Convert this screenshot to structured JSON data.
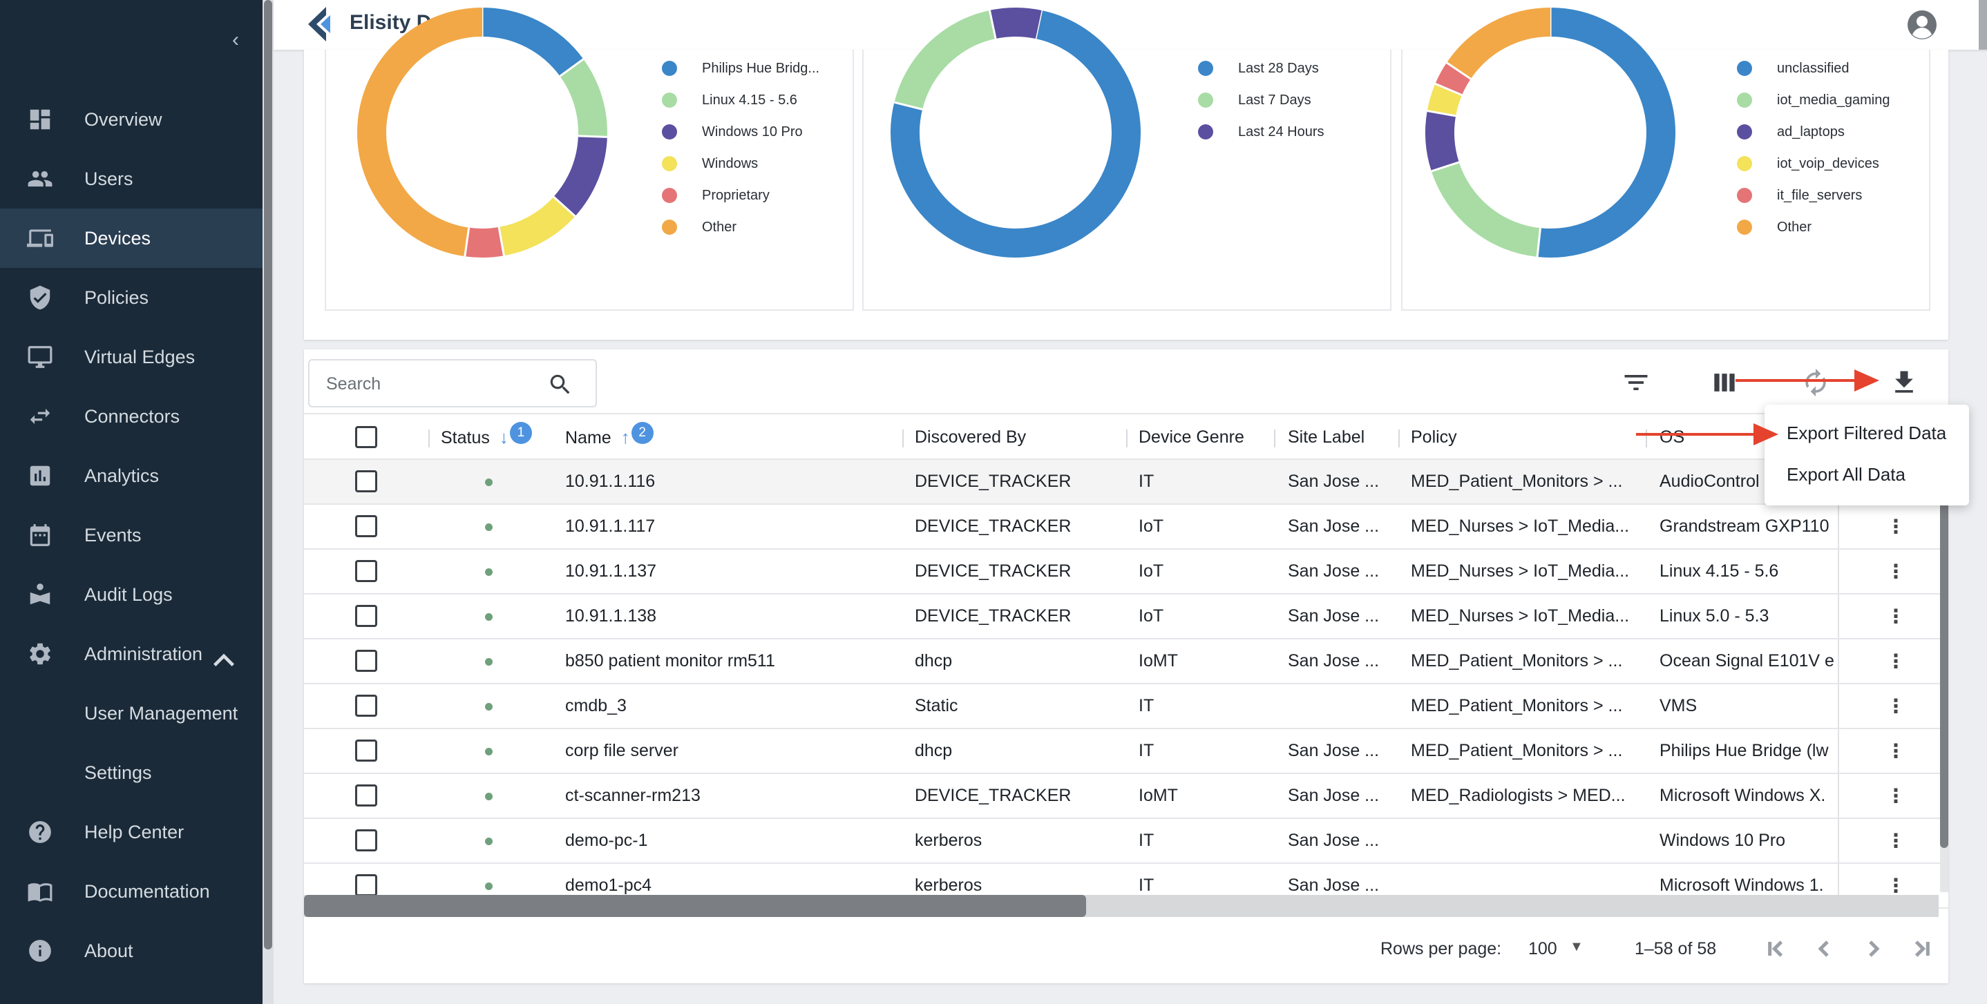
{
  "app": {
    "brand": "Elisity Demo"
  },
  "sidebar": {
    "collapse_icon": "‹",
    "items": [
      {
        "label": "Overview",
        "icon": "dashboard-icon"
      },
      {
        "label": "Users",
        "icon": "users-icon"
      },
      {
        "label": "Devices",
        "icon": "devices-icon"
      },
      {
        "label": "Policies",
        "icon": "shield-icon"
      },
      {
        "label": "Virtual Edges",
        "icon": "monitor-icon"
      },
      {
        "label": "Connectors",
        "icon": "swap-arrows-icon"
      },
      {
        "label": "Analytics",
        "icon": "analytics-icon"
      },
      {
        "label": "Events",
        "icon": "calendar-icon"
      },
      {
        "label": "Audit Logs",
        "icon": "audit-icon"
      },
      {
        "label": "Administration",
        "icon": "gear-icon"
      },
      {
        "label": "User Management"
      },
      {
        "label": "Settings"
      },
      {
        "label": "Help Center",
        "icon": "help-icon"
      },
      {
        "label": "Documentation",
        "icon": "book-icon"
      },
      {
        "label": "About",
        "icon": "info-icon"
      }
    ],
    "active": "Devices"
  },
  "charts": [
    {
      "legend": [
        "Philips Hue Bridg...",
        "Linux 4.15 - 5.6",
        "Windows 10 Pro",
        "Windows",
        "Proprietary",
        "Other"
      ],
      "colors": [
        "#3a86c8",
        "#a8dca4",
        "#5b4fa0",
        "#f3e25a",
        "#e57476",
        "#f2a846"
      ]
    },
    {
      "legend": [
        "Last 28 Days",
        "Last 7 Days",
        "Last 24 Hours"
      ],
      "colors": [
        "#3a86c8",
        "#a8dca4",
        "#5b4fa0"
      ]
    },
    {
      "legend": [
        "unclassified",
        "iot_media_gaming",
        "ad_laptops",
        "iot_voip_devices",
        "it_file_servers",
        "Other"
      ],
      "colors": [
        "#3a86c8",
        "#a8dca4",
        "#5b4fa0",
        "#f3e25a",
        "#e57476",
        "#f2a846"
      ]
    }
  ],
  "table": {
    "search_placeholder": "Search",
    "columns": {
      "status": "Status",
      "status_sort": "1",
      "name": "Name",
      "name_sort": "2",
      "discovered_by": "Discovered By",
      "device_genre": "Device Genre",
      "site_label": "Site Label",
      "policy": "Policy",
      "os": "OS"
    },
    "rows": [
      {
        "name": "10.91.1.116",
        "discovered_by": "DEVICE_TRACKER",
        "genre": "IT",
        "site": "San Jose ...",
        "policy": "MED_Patient_Monitors > ...",
        "os": "AudioControl"
      },
      {
        "name": "10.91.1.117",
        "discovered_by": "DEVICE_TRACKER",
        "genre": "IoT",
        "site": "San Jose ...",
        "policy": "MED_Nurses > IoT_Media...",
        "os": "Grandstream GXP110"
      },
      {
        "name": "10.91.1.137",
        "discovered_by": "DEVICE_TRACKER",
        "genre": "IoT",
        "site": "San Jose ...",
        "policy": "MED_Nurses > IoT_Media...",
        "os": "Linux 4.15 - 5.6"
      },
      {
        "name": "10.91.1.138",
        "discovered_by": "DEVICE_TRACKER",
        "genre": "IoT",
        "site": "San Jose ...",
        "policy": "MED_Nurses > IoT_Media...",
        "os": "Linux 5.0 - 5.3"
      },
      {
        "name": "b850 patient monitor rm511",
        "discovered_by": "dhcp",
        "genre": "IoMT",
        "site": "San Jose ...",
        "policy": "MED_Patient_Monitors > ...",
        "os": "Ocean Signal E101V e"
      },
      {
        "name": "cmdb_3",
        "discovered_by": "Static",
        "genre": "IT",
        "site": "",
        "policy": "MED_Patient_Monitors > ...",
        "os": "VMS"
      },
      {
        "name": "corp file server",
        "discovered_by": "dhcp",
        "genre": "IT",
        "site": "San Jose ...",
        "policy": "MED_Patient_Monitors > ...",
        "os": "Philips Hue Bridge (lw"
      },
      {
        "name": "ct-scanner-rm213",
        "discovered_by": "DEVICE_TRACKER",
        "genre": "IoMT",
        "site": "San Jose ...",
        "policy": "MED_Radiologists > MED...",
        "os": "Microsoft Windows X."
      },
      {
        "name": "demo-pc-1",
        "discovered_by": "kerberos",
        "genre": "IT",
        "site": "San Jose ...",
        "policy": "",
        "os": "Windows 10 Pro"
      },
      {
        "name": "demo1-pc4",
        "discovered_by": "kerberos",
        "genre": "IT",
        "site": "San Jose ...",
        "policy": "",
        "os": "Microsoft Windows 1."
      }
    ],
    "row_menu_icon": "⋮"
  },
  "pagination": {
    "rows_per_page_label": "Rows per page:",
    "rows_per_page_value": "100",
    "range": "1–58 of 58"
  },
  "export_menu": {
    "filtered": "Export Filtered Data",
    "all": "Export All Data"
  },
  "colors": {
    "sidebar_bg": "#1a2a38",
    "accent": "#4e93e0",
    "annotation": "#e5432e",
    "status_online": "#6fa07c"
  }
}
